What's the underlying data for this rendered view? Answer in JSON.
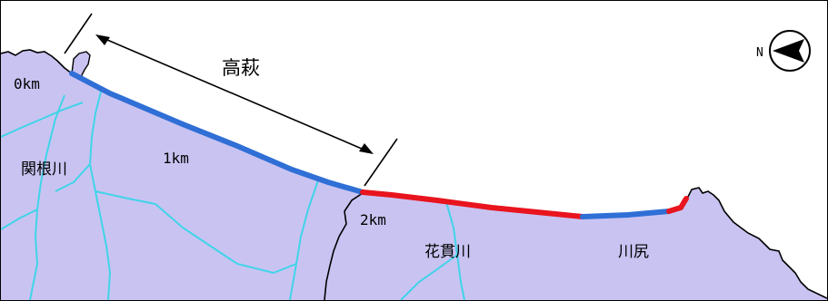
{
  "map": {
    "sea_color": "#ffffff",
    "land_color": "#c9c3f2",
    "river_color": "#40d4e8",
    "boundary_color": "#000000",
    "coastline_color": "#000000",
    "surveyed_color": "#2f6fd6",
    "hazard_color": "#e8141e"
  },
  "labels": {
    "section_name": "高萩",
    "km_0": "0km",
    "km_1": "1km",
    "km_2": "2km",
    "river_sekine": "関根川",
    "river_hananuki": "花貫川",
    "area_kawajiri": "川尻"
  },
  "compass": {
    "north_letter": "N",
    "icon": "north-arrow-icon"
  }
}
